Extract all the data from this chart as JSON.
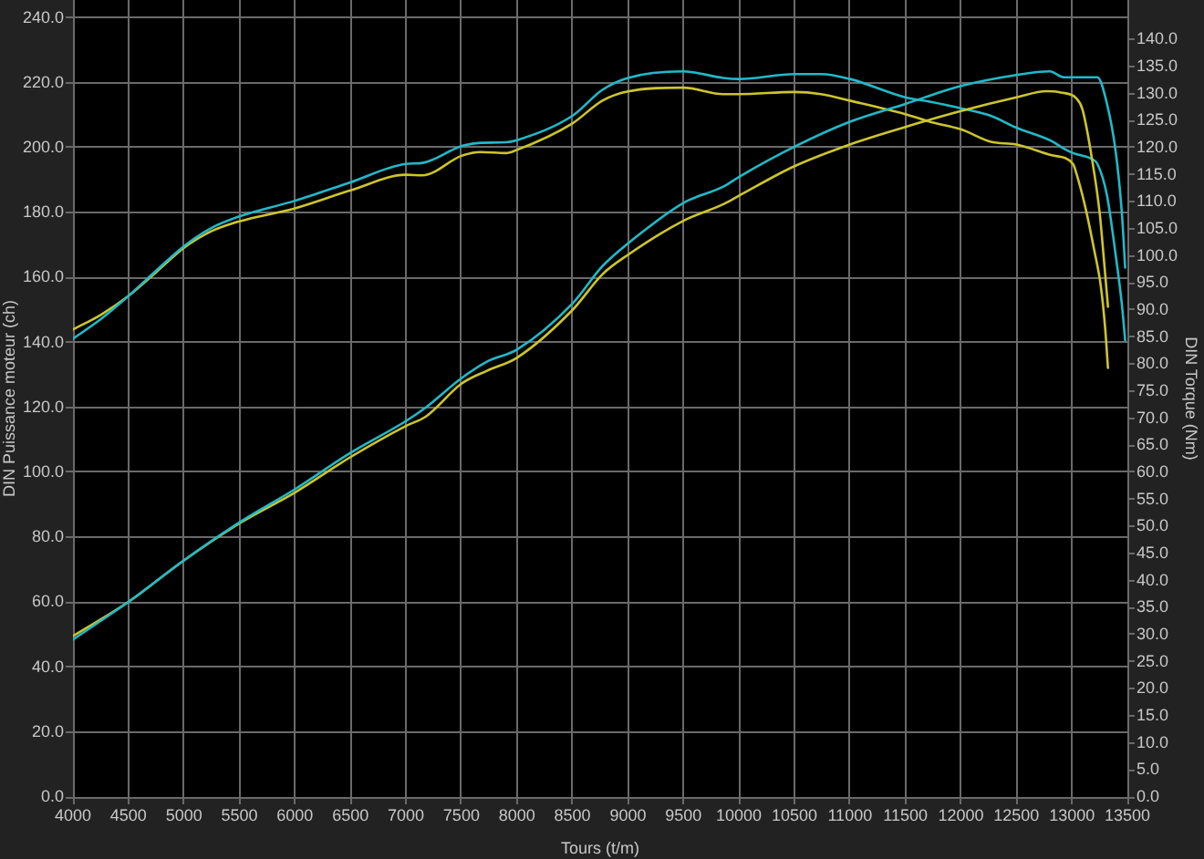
{
  "chart_data": {
    "type": "line",
    "xlabel": "Tours (t/m)",
    "ylabel": "DIN Puissance moteur (ch)",
    "y2label": "DIN Torque (Nm)",
    "xlim": [
      4000,
      13500
    ],
    "xticks": [
      4000,
      4500,
      5000,
      5500,
      6000,
      6500,
      7000,
      7500,
      8000,
      8500,
      9000,
      9500,
      10000,
      10500,
      11000,
      11500,
      12000,
      12500,
      13000,
      13500
    ],
    "ylim": [
      0,
      245.5
    ],
    "yticks": [
      {
        "value": 0,
        "label": "0.0"
      },
      {
        "value": 20,
        "label": "20.0"
      },
      {
        "value": 40,
        "label": "40.0"
      },
      {
        "value": 60,
        "label": "60.0"
      },
      {
        "value": 80,
        "label": "80.0"
      },
      {
        "value": 100,
        "label": "100.0"
      },
      {
        "value": 120,
        "label": "120.0"
      },
      {
        "value": 140,
        "label": "140.0"
      },
      {
        "value": 160,
        "label": "160.0"
      },
      {
        "value": 180,
        "label": "180.0"
      },
      {
        "value": 200,
        "label": "200.0"
      },
      {
        "value": 220,
        "label": "220.0"
      },
      {
        "value": 240,
        "label": "240.0"
      }
    ],
    "y2lim": [
      0,
      147.3
    ],
    "y2ticks": [
      {
        "value": 0,
        "label": "0.0"
      },
      {
        "value": 5,
        "label": "5.0"
      },
      {
        "value": 10,
        "label": "10.0"
      },
      {
        "value": 15,
        "label": "15.0"
      },
      {
        "value": 20,
        "label": "20.0"
      },
      {
        "value": 25,
        "label": "25.0"
      },
      {
        "value": 30,
        "label": "30.0"
      },
      {
        "value": 35,
        "label": "35.0"
      },
      {
        "value": 40,
        "label": "40.0"
      },
      {
        "value": 45,
        "label": "45.0"
      },
      {
        "value": 50,
        "label": "50.0"
      },
      {
        "value": 55,
        "label": "55.0"
      },
      {
        "value": 60,
        "label": "60.0"
      },
      {
        "value": 65,
        "label": "65.0"
      },
      {
        "value": 70,
        "label": "70.0"
      },
      {
        "value": 75,
        "label": "75.0"
      },
      {
        "value": 80,
        "label": "80.0"
      },
      {
        "value": 85,
        "label": "85.0"
      },
      {
        "value": 90,
        "label": "90.0"
      },
      {
        "value": 95,
        "label": "95.0"
      },
      {
        "value": 100,
        "label": "100.0"
      },
      {
        "value": 105,
        "label": "105.0"
      },
      {
        "value": 110,
        "label": "110.0"
      },
      {
        "value": 115,
        "label": "115.0"
      },
      {
        "value": 120,
        "label": "120.0"
      },
      {
        "value": 125,
        "label": "125.0"
      },
      {
        "value": 130,
        "label": "130.0"
      },
      {
        "value": 135,
        "label": "135.0"
      },
      {
        "value": 140,
        "label": "140.0"
      }
    ],
    "grid": true,
    "legend": false,
    "marker": "none",
    "line_style": "solid",
    "series": [
      {
        "color": "#21b9c9",
        "x": [
          4000,
          4500,
          5000,
          5500,
          6000,
          6500,
          7000,
          7180,
          7500,
          7730,
          8000,
          8500,
          8770,
          9000,
          9500,
          9860,
          10000,
          10500,
          11000,
          11500,
          12000,
          12500,
          12800,
          12930,
          13230,
          13315,
          13395,
          13450,
          13480
        ],
        "values": [
          48.5,
          60.1,
          72.9,
          84.6,
          94.8,
          106.0,
          115.8,
          120.0,
          129.0,
          134.1,
          137.8,
          152.0,
          163.5,
          170.5,
          183.0,
          188.0,
          191.0,
          200.3,
          208.0,
          213.5,
          219.0,
          222.4,
          223.5,
          221.7,
          221.7,
          213.7,
          198.7,
          180.0,
          163.1
        ]
      },
      {
        "color": "#cdc52b",
        "x": [
          4000,
          4500,
          5000,
          5500,
          6000,
          6500,
          7000,
          7180,
          7500,
          7730,
          8000,
          8500,
          8770,
          9000,
          9500,
          9860,
          10000,
          10500,
          11000,
          11500,
          12000,
          12500,
          12770,
          12900,
          13040,
          13095,
          13180,
          13250,
          13290,
          13325
        ],
        "values": [
          49.6,
          60.1,
          72.9,
          84.3,
          93.8,
          104.7,
          114.3,
          117.2,
          127.3,
          131.3,
          135.3,
          150.0,
          161.0,
          167.0,
          177.5,
          182.6,
          185.2,
          194.3,
          201.0,
          206.4,
          211.3,
          215.5,
          217.4,
          217.0,
          215.2,
          211.8,
          196.8,
          180.0,
          165.0,
          151.0
        ]
      },
      {
        "color": "#21b9c9",
        "axis": "y2",
        "x": [
          4000,
          4250,
          4500,
          4750,
          5000,
          5250,
          5500,
          6000,
          6500,
          7000,
          7150,
          7500,
          7670,
          7900,
          8000,
          8500,
          8770,
          9000,
          9500,
          9860,
          10000,
          10500,
          10740,
          11000,
          11500,
          11720,
          12000,
          12270,
          12500,
          12820,
          12930,
          13010,
          13180,
          13230,
          13315,
          13395,
          13450,
          13480
        ],
        "values": [
          84.7,
          88.3,
          92.6,
          97.3,
          101.8,
          105.2,
          107.3,
          110.2,
          113.6,
          117.0,
          117.2,
          120.3,
          120.9,
          121.0,
          121.4,
          125.9,
          130.7,
          132.9,
          134.1,
          132.9,
          132.7,
          133.6,
          133.6,
          132.7,
          129.3,
          128.5,
          127.3,
          125.9,
          123.7,
          121.2,
          119.8,
          119.0,
          117.9,
          117.0,
          111.3,
          100.1,
          91.1,
          84.4
        ]
      },
      {
        "color": "#cdc52b",
        "axis": "y2",
        "x": [
          4000,
          4250,
          4500,
          4750,
          5000,
          5250,
          5500,
          6000,
          6500,
          7000,
          7150,
          7500,
          7670,
          7900,
          8000,
          8500,
          8770,
          9000,
          9500,
          9860,
          10000,
          10500,
          10740,
          11000,
          11500,
          11720,
          12000,
          12270,
          12500,
          12820,
          13010,
          13040,
          13120,
          13200,
          13260,
          13300,
          13325
        ],
        "values": [
          86.4,
          89.1,
          92.6,
          97.0,
          101.5,
          104.6,
          106.4,
          108.8,
          112.1,
          115.0,
          114.9,
          118.5,
          119.2,
          119.0,
          119.6,
          124.5,
          128.7,
          130.4,
          131.1,
          129.9,
          129.9,
          130.3,
          129.9,
          128.7,
          126.2,
          124.8,
          123.4,
          121.1,
          120.6,
          118.6,
          117.0,
          115.3,
          109.1,
          101.2,
          94.5,
          86.6,
          79.3
        ]
      }
    ]
  }
}
